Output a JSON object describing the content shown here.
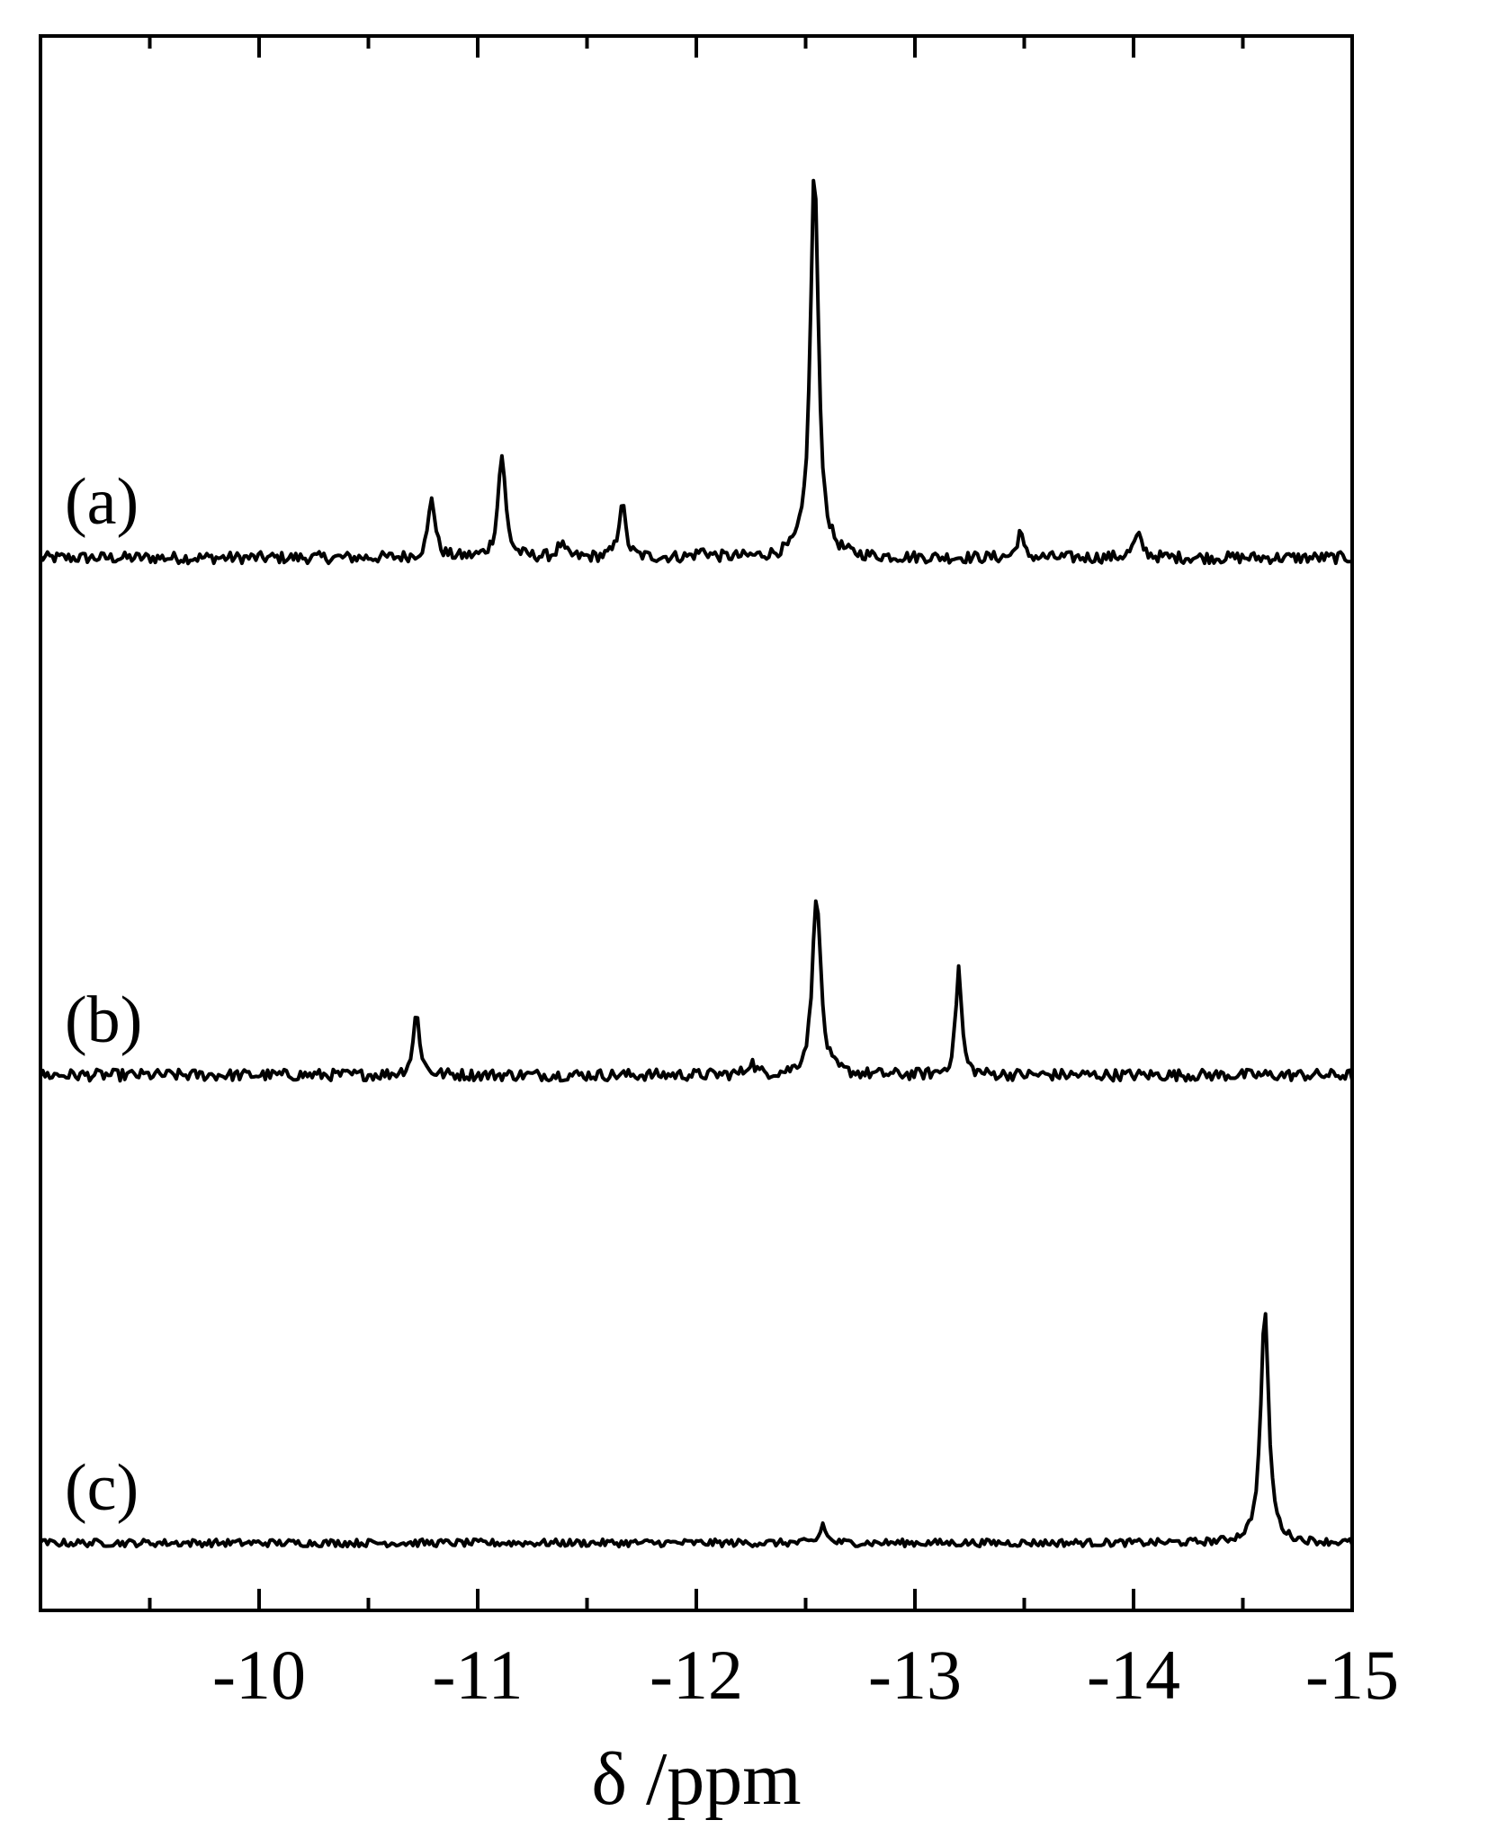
{
  "chart_data": {
    "type": "line",
    "title": "",
    "xlabel": "δ /ppm",
    "ylabel": "",
    "x_ticks": [
      -10,
      -11,
      -12,
      -13,
      -14,
      -15
    ],
    "x_tick_labels": [
      "-10",
      "-11",
      "-12",
      "-13",
      "-14",
      "-15"
    ],
    "xlim": [
      -9.0,
      -15.0
    ],
    "minor_tick_step": 0.5,
    "grid": false,
    "legend": "none",
    "line_color": "#000000",
    "series": [
      {
        "name": "(a)",
        "baseline_noise": 0.055,
        "peaks": [
          {
            "x": -10.79,
            "height": 0.58,
            "width": 0.018
          },
          {
            "x": -11.11,
            "height": 0.98,
            "width": 0.02
          },
          {
            "x": -11.38,
            "height": 0.12,
            "width": 0.02
          },
          {
            "x": -11.66,
            "height": 0.53,
            "width": 0.018
          },
          {
            "x": -12.03,
            "height": 0.06,
            "width": 0.03
          },
          {
            "x": -12.54,
            "height": 3.7,
            "width": 0.022
          },
          {
            "x": -13.48,
            "height": 0.25,
            "width": 0.015
          },
          {
            "x": -14.02,
            "height": 0.2,
            "width": 0.025
          }
        ]
      },
      {
        "name": "(b)",
        "baseline_noise": 0.055,
        "peaks": [
          {
            "x": -10.72,
            "height": 0.58,
            "width": 0.018
          },
          {
            "x": -12.25,
            "height": 0.12,
            "width": 0.02
          },
          {
            "x": -12.55,
            "height": 1.75,
            "width": 0.022
          },
          {
            "x": -13.2,
            "height": 1.02,
            "width": 0.016
          }
        ]
      },
      {
        "name": "(c)",
        "baseline_noise": 0.035,
        "peaks": [
          {
            "x": -12.58,
            "height": 0.18,
            "width": 0.015
          },
          {
            "x": -14.6,
            "height": 2.2,
            "width": 0.022
          }
        ]
      }
    ]
  }
}
